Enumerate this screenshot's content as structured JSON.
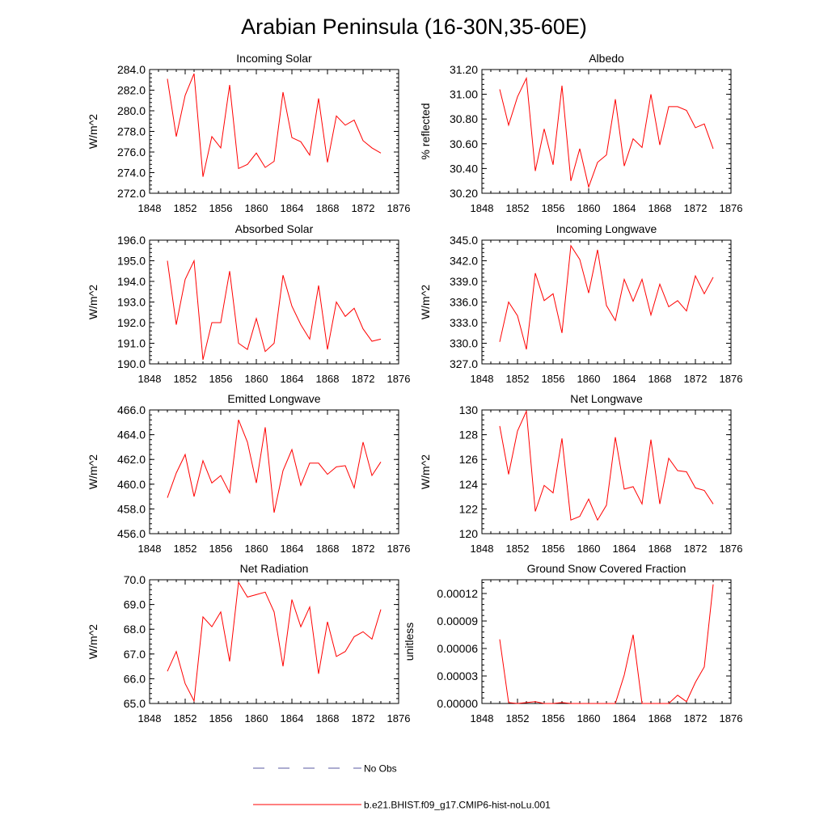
{
  "figure": {
    "title": "Arabian Peninsula (16-30N,35-60E)",
    "line_color": "#ff0000",
    "obs_color": "#5a5aa0"
  },
  "legend": {
    "entries": [
      {
        "label": "No Obs",
        "style": "dashed"
      },
      {
        "label": "b.e21.BHIST.f09_g17.CMIP6-hist-noLu.001",
        "style": "solid"
      }
    ]
  },
  "chart_data": [
    {
      "type": "line",
      "title": "Incoming Solar",
      "xlabel": "",
      "ylabel": "W/m^2",
      "xlim": [
        1848,
        1876
      ],
      "ylim": [
        272.0,
        284.0
      ],
      "yticks": [
        "272.0",
        "274.0",
        "276.0",
        "278.0",
        "280.0",
        "282.0",
        "284.0"
      ],
      "xticks": [
        "1848",
        "1852",
        "1856",
        "1860",
        "1864",
        "1868",
        "1872",
        "1876"
      ],
      "x": [
        1850,
        1851,
        1852,
        1853,
        1854,
        1855,
        1856,
        1857,
        1858,
        1859,
        1860,
        1861,
        1862,
        1863,
        1864,
        1865,
        1866,
        1867,
        1868,
        1869,
        1870,
        1871,
        1872,
        1873,
        1874
      ],
      "series": [
        {
          "values": [
            283.1,
            277.5,
            281.5,
            283.6,
            273.6,
            277.5,
            276.4,
            282.5,
            274.4,
            274.8,
            275.9,
            274.5,
            275.1,
            281.8,
            277.4,
            277.0,
            275.7,
            281.2,
            275.0,
            279.5,
            278.6,
            279.1,
            277.1,
            276.4,
            275.9
          ]
        }
      ]
    },
    {
      "type": "line",
      "title": "Albedo",
      "xlabel": "",
      "ylabel": "% reflected",
      "xlim": [
        1848,
        1876
      ],
      "ylim": [
        30.2,
        31.2
      ],
      "yticks": [
        "30.20",
        "30.40",
        "30.60",
        "30.80",
        "31.00",
        "31.20"
      ],
      "xticks": [
        "1848",
        "1852",
        "1856",
        "1860",
        "1864",
        "1868",
        "1872",
        "1876"
      ],
      "x": [
        1850,
        1851,
        1852,
        1853,
        1854,
        1855,
        1856,
        1857,
        1858,
        1859,
        1860,
        1861,
        1862,
        1863,
        1864,
        1865,
        1866,
        1867,
        1868,
        1869,
        1870,
        1871,
        1872,
        1873,
        1874
      ],
      "series": [
        {
          "values": [
            31.04,
            30.75,
            30.98,
            31.13,
            30.38,
            30.72,
            30.43,
            31.07,
            30.3,
            30.56,
            30.25,
            30.45,
            30.51,
            30.96,
            30.42,
            30.64,
            30.57,
            31.0,
            30.59,
            30.9,
            30.9,
            30.87,
            30.73,
            30.76,
            30.56
          ]
        }
      ]
    },
    {
      "type": "line",
      "title": "Absorbed Solar",
      "xlabel": "",
      "ylabel": "W/m^2",
      "xlim": [
        1848,
        1876
      ],
      "ylim": [
        190.0,
        196.0
      ],
      "yticks": [
        "190.0",
        "191.0",
        "192.0",
        "193.0",
        "194.0",
        "195.0",
        "196.0"
      ],
      "xticks": [
        "1848",
        "1852",
        "1856",
        "1860",
        "1864",
        "1868",
        "1872",
        "1876"
      ],
      "x": [
        1850,
        1851,
        1852,
        1853,
        1854,
        1855,
        1856,
        1857,
        1858,
        1859,
        1860,
        1861,
        1862,
        1863,
        1864,
        1865,
        1866,
        1867,
        1868,
        1869,
        1870,
        1871,
        1872,
        1873,
        1874
      ],
      "series": [
        {
          "values": [
            195.0,
            191.9,
            194.1,
            195.0,
            190.2,
            192.0,
            192.0,
            194.5,
            191.0,
            190.7,
            192.2,
            190.6,
            191.0,
            194.3,
            192.8,
            191.9,
            191.2,
            193.8,
            190.7,
            193.0,
            192.3,
            192.7,
            191.7,
            191.1,
            191.2
          ]
        }
      ]
    },
    {
      "type": "line",
      "title": "Incoming Longwave",
      "xlabel": "",
      "ylabel": "W/m^2",
      "xlim": [
        1848,
        1876
      ],
      "ylim": [
        327.0,
        345.0
      ],
      "yticks": [
        "327.0",
        "330.0",
        "333.0",
        "336.0",
        "339.0",
        "342.0",
        "345.0"
      ],
      "xticks": [
        "1848",
        "1852",
        "1856",
        "1860",
        "1864",
        "1868",
        "1872",
        "1876"
      ],
      "x": [
        1850,
        1851,
        1852,
        1853,
        1854,
        1855,
        1856,
        1857,
        1858,
        1859,
        1860,
        1861,
        1862,
        1863,
        1864,
        1865,
        1866,
        1867,
        1868,
        1869,
        1870,
        1871,
        1872,
        1873,
        1874
      ],
      "series": [
        {
          "values": [
            330.2,
            336.0,
            334.0,
            329.1,
            340.2,
            336.2,
            337.2,
            331.5,
            344.2,
            342.2,
            337.3,
            343.6,
            335.5,
            333.3,
            339.3,
            336.1,
            339.3,
            334.1,
            338.6,
            335.3,
            336.2,
            334.7,
            339.8,
            337.2,
            339.6
          ]
        }
      ]
    },
    {
      "type": "line",
      "title": "Emitted Longwave",
      "xlabel": "",
      "ylabel": "W/m^2",
      "xlim": [
        1848,
        1876
      ],
      "ylim": [
        456.0,
        466.0
      ],
      "yticks": [
        "456.0",
        "458.0",
        "460.0",
        "462.0",
        "464.0",
        "466.0"
      ],
      "xticks": [
        "1848",
        "1852",
        "1856",
        "1860",
        "1864",
        "1868",
        "1872",
        "1876"
      ],
      "x": [
        1850,
        1851,
        1852,
        1853,
        1854,
        1855,
        1856,
        1857,
        1858,
        1859,
        1860,
        1861,
        1862,
        1863,
        1864,
        1865,
        1866,
        1867,
        1868,
        1869,
        1870,
        1871,
        1872,
        1873,
        1874
      ],
      "series": [
        {
          "values": [
            458.9,
            460.9,
            462.4,
            459.0,
            461.9,
            460.1,
            460.7,
            459.3,
            465.2,
            463.4,
            460.1,
            464.6,
            457.7,
            461.1,
            462.8,
            459.9,
            461.7,
            461.7,
            460.8,
            461.4,
            461.5,
            459.7,
            463.4,
            460.7,
            461.8
          ]
        }
      ]
    },
    {
      "type": "line",
      "title": "Net Longwave",
      "xlabel": "",
      "ylabel": "W/m^2",
      "xlim": [
        1848,
        1876
      ],
      "ylim": [
        120,
        130
      ],
      "yticks": [
        "120",
        "122",
        "124",
        "126",
        "128",
        "130"
      ],
      "xticks": [
        "1848",
        "1852",
        "1856",
        "1860",
        "1864",
        "1868",
        "1872",
        "1876"
      ],
      "x": [
        1850,
        1851,
        1852,
        1853,
        1854,
        1855,
        1856,
        1857,
        1858,
        1859,
        1860,
        1861,
        1862,
        1863,
        1864,
        1865,
        1866,
        1867,
        1868,
        1869,
        1870,
        1871,
        1872,
        1873,
        1874
      ],
      "series": [
        {
          "values": [
            128.7,
            124.8,
            128.3,
            129.9,
            121.8,
            123.9,
            123.3,
            127.7,
            121.1,
            121.4,
            122.8,
            121.1,
            122.3,
            127.8,
            123.6,
            123.8,
            122.4,
            127.6,
            122.4,
            126.1,
            125.1,
            125.0,
            123.7,
            123.5,
            122.4
          ]
        }
      ]
    },
    {
      "type": "line",
      "title": "Net Radiation",
      "xlabel": "",
      "ylabel": "W/m^2",
      "xlim": [
        1848,
        1876
      ],
      "ylim": [
        65.0,
        70.0
      ],
      "yticks": [
        "65.0",
        "66.0",
        "67.0",
        "68.0",
        "69.0",
        "70.0"
      ],
      "xticks": [
        "1848",
        "1852",
        "1856",
        "1860",
        "1864",
        "1868",
        "1872",
        "1876"
      ],
      "x": [
        1850,
        1851,
        1852,
        1853,
        1854,
        1855,
        1856,
        1857,
        1858,
        1859,
        1860,
        1861,
        1862,
        1863,
        1864,
        1865,
        1866,
        1867,
        1868,
        1869,
        1870,
        1871,
        1872,
        1873,
        1874
      ],
      "series": [
        {
          "values": [
            66.3,
            67.1,
            65.8,
            65.1,
            68.5,
            68.1,
            68.7,
            66.7,
            69.9,
            69.3,
            69.4,
            69.5,
            68.7,
            66.5,
            69.2,
            68.1,
            68.9,
            66.2,
            68.3,
            66.9,
            67.1,
            67.7,
            67.9,
            67.6,
            68.8
          ]
        }
      ]
    },
    {
      "type": "line",
      "title": "Ground Snow Covered Fraction",
      "xlabel": "",
      "ylabel": "unitless",
      "xlim": [
        1848,
        1876
      ],
      "ylim": [
        0.0,
        0.000135
      ],
      "yticks": [
        "0.00000",
        "0.00003",
        "0.00006",
        "0.00009",
        "0.00012"
      ],
      "ytick_values": [
        0.0,
        3e-05,
        6e-05,
        9e-05,
        0.00012
      ],
      "xticks": [
        "1848",
        "1852",
        "1856",
        "1860",
        "1864",
        "1868",
        "1872",
        "1876"
      ],
      "x": [
        1850,
        1851,
        1852,
        1853,
        1854,
        1855,
        1856,
        1857,
        1858,
        1859,
        1860,
        1861,
        1862,
        1863,
        1864,
        1865,
        1866,
        1867,
        1868,
        1869,
        1870,
        1871,
        1872,
        1873,
        1874
      ],
      "series": [
        {
          "values": [
            7e-05,
            1e-06,
            0.0,
            1e-06,
            2e-06,
            0.0,
            0.0,
            1e-06,
            0.0,
            0.0,
            0.0,
            0.0,
            0.0,
            0.0,
            3.1e-05,
            7.5e-05,
            0.0,
            0.0,
            0.0,
            0.0,
            9e-06,
            2e-06,
            2.3e-05,
            4e-05,
            0.00013
          ]
        }
      ]
    }
  ]
}
